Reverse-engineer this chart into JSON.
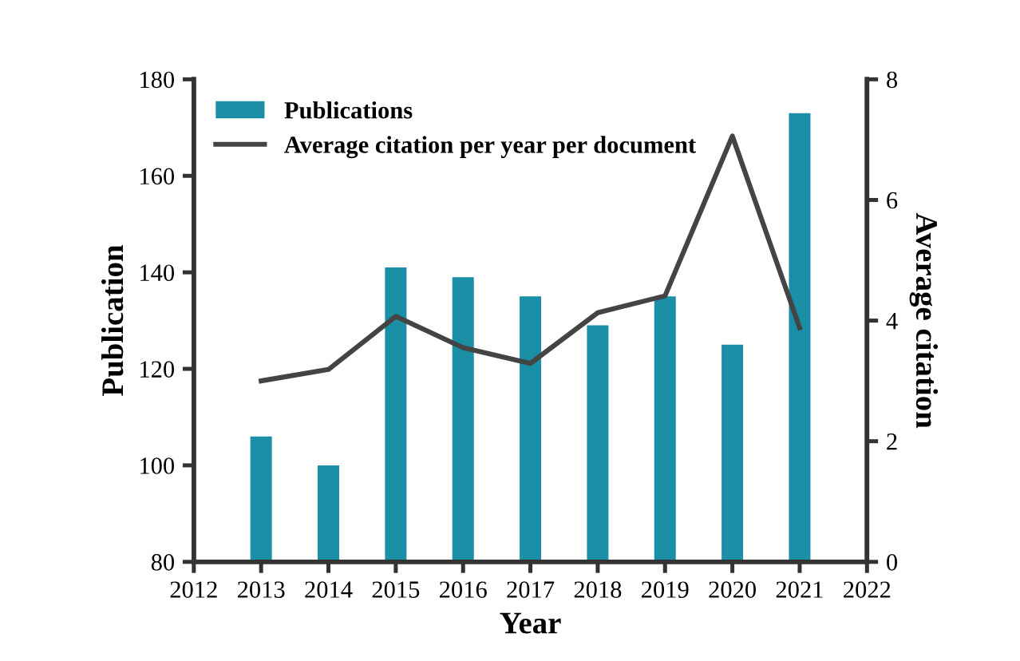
{
  "chart_data": {
    "type": "bar",
    "xlabel": "Year",
    "ylabel": "Publication",
    "y2label": "Average citation",
    "x": [
      2013,
      2014,
      2015,
      2016,
      2017,
      2018,
      2019,
      2020,
      2021
    ],
    "series": [
      {
        "name": "Publications",
        "color": "#1b8fa6",
        "values": [
          106,
          100,
          141,
          139,
          135,
          129,
          135,
          125,
          173
        ]
      },
      {
        "name": "Average citation per year per document",
        "type": "line",
        "axis": "y2",
        "color": "#444444",
        "values": [
          3.0,
          3.19,
          4.07,
          3.55,
          3.29,
          4.13,
          4.41,
          7.06,
          3.88
        ]
      }
    ],
    "xlim": [
      2012,
      2022
    ],
    "xticks": [
      2012,
      2013,
      2014,
      2015,
      2016,
      2017,
      2018,
      2019,
      2020,
      2021,
      2022
    ],
    "ylim": [
      80,
      180
    ],
    "yticks": [
      80,
      100,
      120,
      140,
      160,
      180
    ],
    "y2lim": [
      0,
      8
    ],
    "y2ticks": [
      0,
      2,
      4,
      6,
      8
    ],
    "legend": "top left",
    "grid": false
  }
}
